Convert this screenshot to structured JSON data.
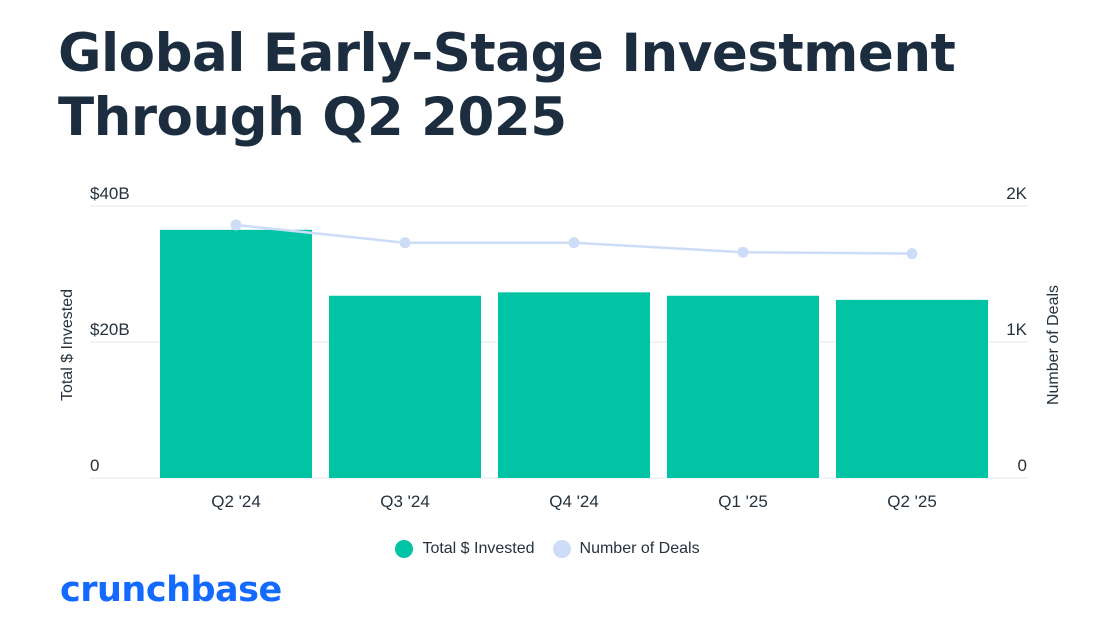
{
  "title": "Global Early-Stage Investment Through Q2 2025",
  "logo_text": "crunchbase",
  "colors": {
    "bars": "#00c4a4",
    "line": "#cddcf7",
    "title": "#1b2d3f",
    "logo": "#146aff"
  },
  "chart_data": {
    "type": "bar",
    "categories": [
      "Q2 '24",
      "Q3 '24",
      "Q4 '24",
      "Q1 '25",
      "Q2 '25"
    ],
    "series": [
      {
        "name": "Total $ Invested",
        "type": "bar",
        "axis": "left",
        "values": [
          36.5,
          26.8,
          27.3,
          26.8,
          26.2
        ]
      },
      {
        "name": "Number of Deals",
        "type": "line",
        "axis": "right",
        "values": [
          1860,
          1730,
          1730,
          1660,
          1650
        ]
      }
    ],
    "y_left": {
      "label": "Total $ Invested",
      "range": [
        0,
        40
      ],
      "ticks": [
        0,
        20,
        40
      ],
      "tick_labels": [
        "0",
        "$20B",
        "$40B"
      ]
    },
    "y_right": {
      "label": "Number of Deals",
      "range": [
        0,
        2000
      ],
      "ticks": [
        0,
        1000,
        2000
      ],
      "tick_labels": [
        "0",
        "1K",
        "2K"
      ]
    },
    "grid": true,
    "legend_position": "bottom-center"
  }
}
